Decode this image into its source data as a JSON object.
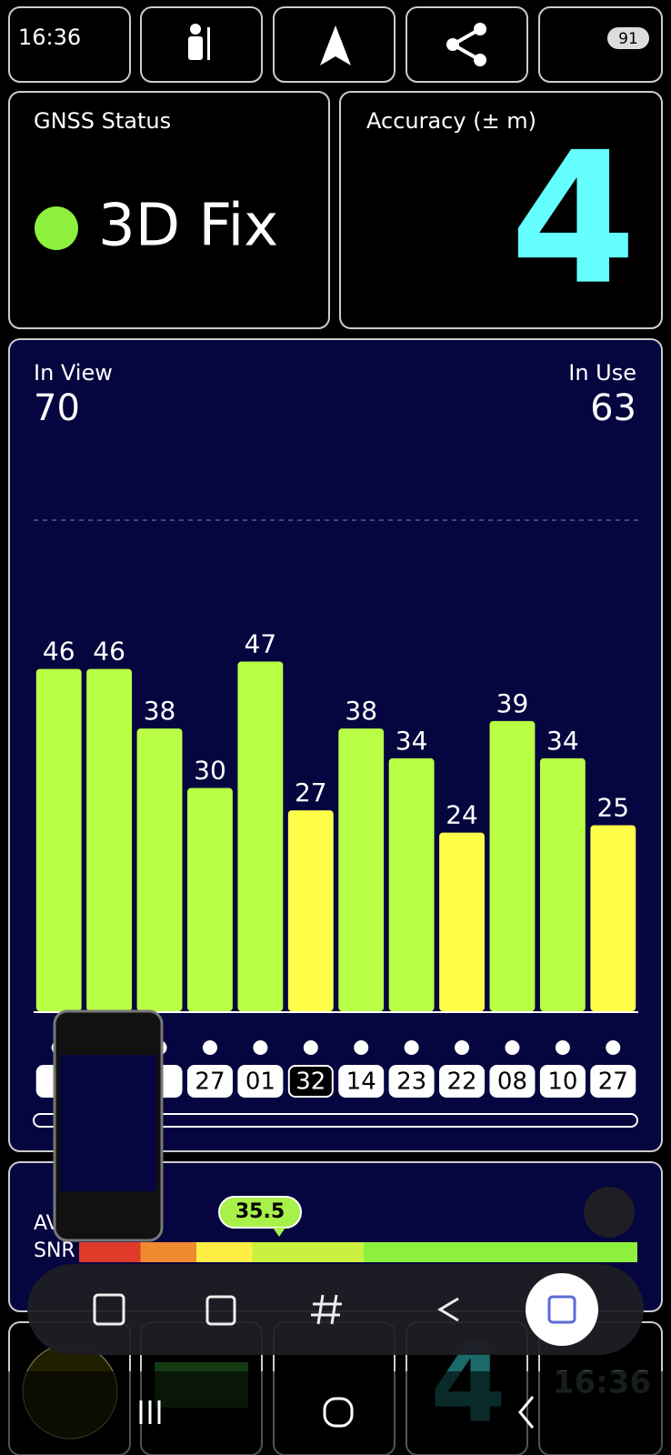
{
  "status_bar": {
    "time": "16:36",
    "battery": "91"
  },
  "gnss": {
    "title": "GNSS Status",
    "status": "3D Fix"
  },
  "accuracy": {
    "title": "Accuracy (± m)",
    "value": 4
  },
  "chart_data": {
    "type": "bar",
    "in_view_label": "In View",
    "in_view": 70,
    "in_use_label": "In Use",
    "in_use": 63,
    "categories": [
      null,
      null,
      null,
      "27",
      "01",
      "32",
      "14",
      "23",
      "22",
      "08",
      "10",
      "27"
    ],
    "values": [
      46,
      46,
      38,
      30,
      47,
      27,
      38,
      34,
      24,
      39,
      34,
      25
    ],
    "colors": [
      "#b8ff45",
      "#b8ff45",
      "#b8ff45",
      "#b8ff45",
      "#b8ff45",
      "#ffff4a",
      "#b8ff45",
      "#b8ff45",
      "#ffff4a",
      "#b8ff45",
      "#b8ff45",
      "#ffff4a"
    ],
    "ylim": [
      0,
      66
    ]
  },
  "snr": {
    "label": "AVG",
    "sublabel": "SNR",
    "average": 35.5
  },
  "bottom_cards": {
    "accuracy": 4,
    "clock": "16:36"
  }
}
